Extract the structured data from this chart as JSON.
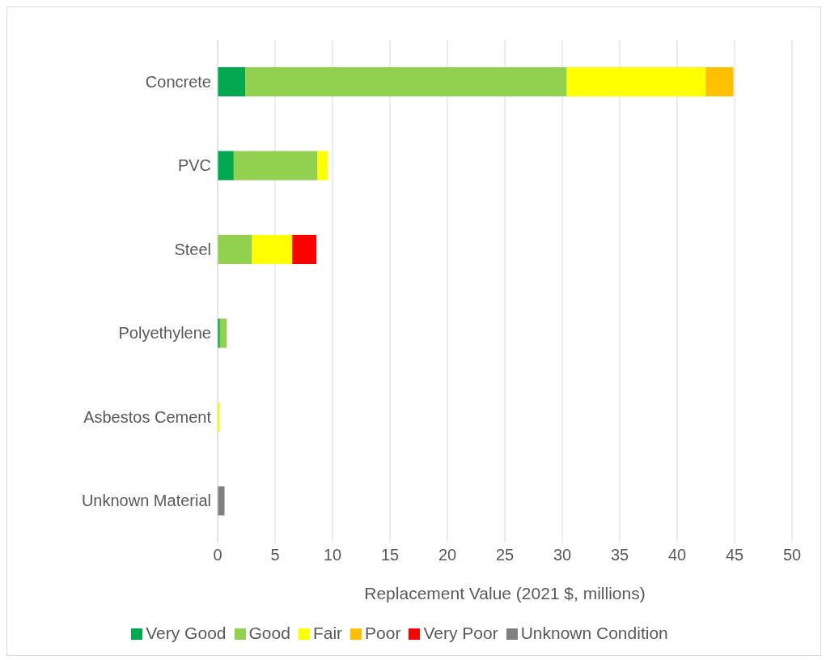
{
  "chart_data": {
    "type": "bar",
    "orientation": "horizontal",
    "stacked": true,
    "xlabel": "Replacement Value (2021 $, millions)",
    "categories": [
      "Concrete",
      "PVC",
      "Steel",
      "Polyethylene",
      "Asbestos Cement",
      "Unknown Material"
    ],
    "series": [
      {
        "name": "Very Good",
        "color": "#00a850",
        "values": [
          2.4,
          1.4,
          0,
          0.2,
          0,
          0
        ]
      },
      {
        "name": "Good",
        "color": "#92d050",
        "values": [
          28,
          7.3,
          3.0,
          0.6,
          0,
          0
        ]
      },
      {
        "name": "Fair",
        "color": "#ffff00",
        "values": [
          12.1,
          0.9,
          3.5,
          0,
          0.2,
          0
        ]
      },
      {
        "name": "Poor",
        "color": "#ffc000",
        "values": [
          2.4,
          0,
          0,
          0,
          0,
          0
        ]
      },
      {
        "name": "Very Poor",
        "color": "#ff0000",
        "values": [
          0,
          0,
          2.1,
          0,
          0,
          0
        ]
      },
      {
        "name": "Unknown Condition",
        "color": "#808080",
        "values": [
          0,
          0,
          0,
          0,
          0,
          0.6
        ]
      }
    ],
    "xlim": [
      0,
      50
    ],
    "xticks": [
      0,
      5,
      10,
      15,
      20,
      25,
      30,
      35,
      40,
      45,
      50
    ],
    "grid": "x",
    "legend": "bottom"
  }
}
